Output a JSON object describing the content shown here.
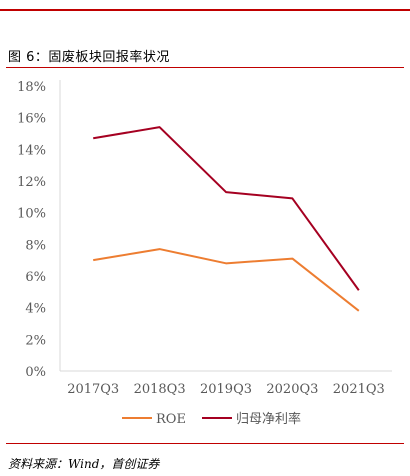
{
  "header": {
    "accent_color": "#c00000"
  },
  "figure": {
    "title": "图 6：固废板块回报率状况",
    "source": "资料来源：Wind，首创证券"
  },
  "chart_data": {
    "type": "line",
    "title": "",
    "xlabel": "",
    "ylabel": "",
    "categories": [
      "2017Q3",
      "2018Q3",
      "2019Q3",
      "2020Q3",
      "2021Q3"
    ],
    "ylim": [
      0,
      18
    ],
    "yticks": [
      0,
      2,
      4,
      6,
      8,
      10,
      12,
      14,
      16,
      18
    ],
    "ytick_labels": [
      "0%",
      "2%",
      "4%",
      "6%",
      "8%",
      "10%",
      "12%",
      "14%",
      "16%",
      "18%"
    ],
    "grid": false,
    "legend_position": "bottom",
    "series": [
      {
        "name": "ROE",
        "color": "#ed7d31",
        "values": [
          7.0,
          7.7,
          6.8,
          7.1,
          3.8
        ]
      },
      {
        "name": "归母净利率",
        "color": "#a50021",
        "values": [
          14.7,
          15.4,
          11.3,
          10.9,
          5.1
        ]
      }
    ]
  }
}
